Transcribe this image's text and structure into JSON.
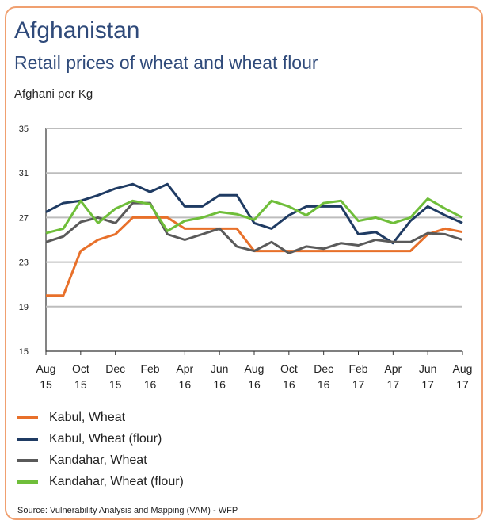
{
  "header": {
    "title": "Afghanistan",
    "subtitle": "Retail prices of wheat and wheat flour",
    "unit": "Afghani per Kg"
  },
  "source": "Source: Vulnerability Analysis and Mapping (VAM) - WFP",
  "chart_data": {
    "type": "line",
    "title": "Afghanistan",
    "subtitle": "Retail prices of wheat and wheat flour",
    "ylabel": "Afghani per Kg",
    "xlabel": "",
    "ylim": [
      15,
      35
    ],
    "yticks": [
      15,
      19,
      23,
      27,
      31,
      35
    ],
    "grid": true,
    "legend_position": "bottom",
    "x": [
      "Aug 15",
      "Sep 15",
      "Oct 15",
      "Nov 15",
      "Dec 15",
      "Jan 16",
      "Feb 16",
      "Mar 16",
      "Apr 16",
      "May 16",
      "Jun 16",
      "Jul 16",
      "Aug 16",
      "Sep 16",
      "Oct 16",
      "Nov 16",
      "Dec 16",
      "Jan 17",
      "Feb 17",
      "Mar 17",
      "Apr 17",
      "May 17",
      "Jun 17",
      "Jul 17",
      "Aug 17"
    ],
    "xtick_labels": [
      {
        "index": 0,
        "month": "Aug",
        "year": "15"
      },
      {
        "index": 2,
        "month": "Oct",
        "year": "15"
      },
      {
        "index": 4,
        "month": "Dec",
        "year": "15"
      },
      {
        "index": 6,
        "month": "Feb",
        "year": "16"
      },
      {
        "index": 8,
        "month": "Apr",
        "year": "16"
      },
      {
        "index": 10,
        "month": "Jun",
        "year": "16"
      },
      {
        "index": 12,
        "month": "Aug",
        "year": "16"
      },
      {
        "index": 14,
        "month": "Oct",
        "year": "16"
      },
      {
        "index": 16,
        "month": "Dec",
        "year": "16"
      },
      {
        "index": 18,
        "month": "Feb",
        "year": "17"
      },
      {
        "index": 20,
        "month": "Apr",
        "year": "17"
      },
      {
        "index": 22,
        "month": "Jun",
        "year": "17"
      },
      {
        "index": 24,
        "month": "Aug",
        "year": "17"
      }
    ],
    "series": [
      {
        "name": "Kabul, Wheat",
        "color": "#e8702a",
        "values": [
          20,
          20,
          24,
          25,
          25.5,
          27,
          27,
          27,
          26,
          26,
          26,
          26,
          24,
          24,
          24,
          24,
          24,
          24,
          24,
          24,
          24,
          24,
          25.5,
          26,
          25.7
        ]
      },
      {
        "name": "Kabul, Wheat (flour)",
        "color": "#1f3b63",
        "values": [
          27.5,
          28.3,
          28.5,
          29,
          29.6,
          30,
          29.3,
          30,
          28,
          28,
          29,
          29,
          26.5,
          26,
          27.2,
          28,
          28,
          28,
          25.5,
          25.7,
          24.7,
          26.7,
          28,
          27.2,
          26.5
        ]
      },
      {
        "name": "Kandahar, Wheat",
        "color": "#5a5a5a",
        "values": [
          24.8,
          25.3,
          26.6,
          27,
          26.5,
          28.3,
          28.3,
          25.5,
          25,
          25.5,
          26,
          24.4,
          24,
          24.8,
          23.8,
          24.4,
          24.2,
          24.7,
          24.5,
          25,
          24.8,
          24.8,
          25.6,
          25.5,
          25
        ]
      },
      {
        "name": "Kandahar, Wheat (flour)",
        "color": "#6fbe3a",
        "values": [
          25.6,
          26,
          28.5,
          26.5,
          27.8,
          28.5,
          28.2,
          25.8,
          26.7,
          27,
          27.5,
          27.3,
          26.8,
          28.5,
          28,
          27.2,
          28.3,
          28.5,
          26.7,
          27,
          26.5,
          27,
          28.7,
          27.8,
          27
        ]
      }
    ]
  }
}
